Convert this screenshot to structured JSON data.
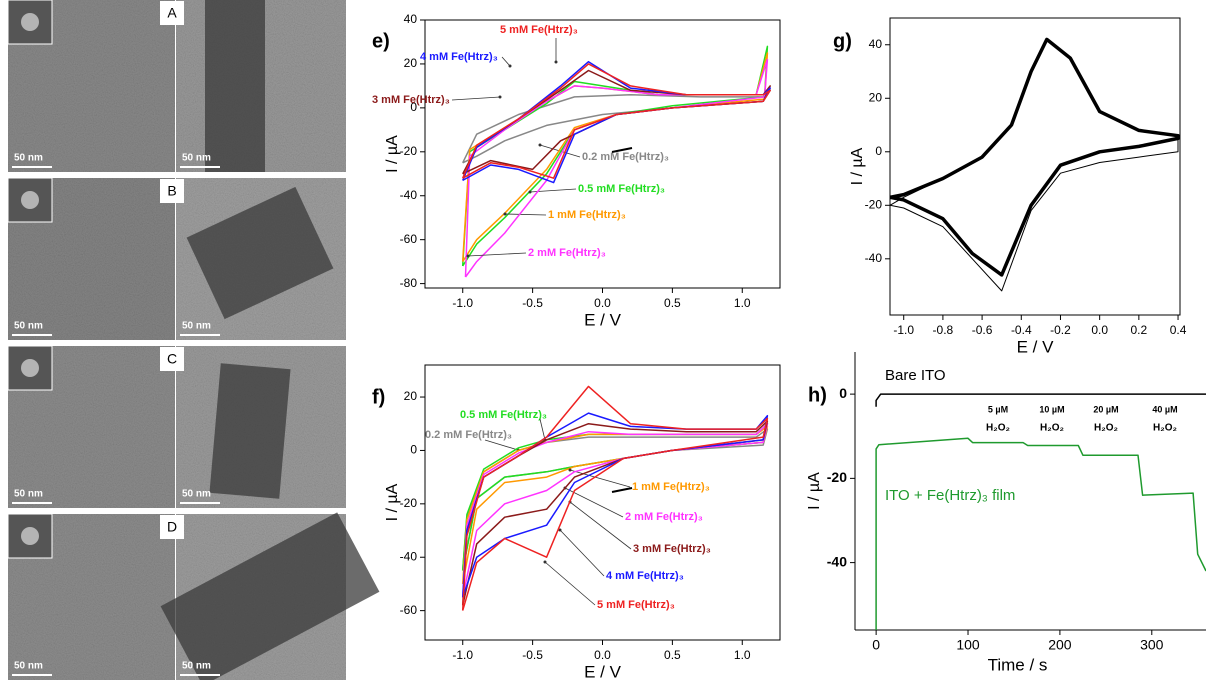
{
  "micrographs": {
    "labels": [
      "A",
      "B",
      "C",
      "D"
    ],
    "scale_bar": "50 nm"
  },
  "chart_data": [
    {
      "type": "line",
      "label": "e)",
      "xlabel": "E / V",
      "ylabel": "I / µA",
      "xlim": [
        -1.27,
        1.27
      ],
      "ylim": [
        -82,
        40
      ],
      "xticks": [
        {
          "value": -1,
          "label": "-1.0"
        },
        -0.5,
        {
          "value": 0,
          "label": "0.0"
        },
        0.5,
        {
          "value": 1,
          "label": "1.0"
        }
      ],
      "yticks": [
        -80,
        -60,
        -40,
        -20,
        0,
        20,
        40
      ],
      "series": [
        {
          "name": "0.2 mM Fe(Htrz)₃",
          "color": "#888888",
          "x": [
            -1,
            -0.9,
            -0.6,
            -0.2,
            0.2,
            0.7,
            1.15,
            1.2,
            1.15,
            0.5,
            0,
            -0.4,
            -0.7,
            -0.9,
            -1
          ],
          "values": [
            -25,
            -12,
            -3,
            5,
            6,
            5,
            5,
            8,
            3,
            0,
            -3,
            -8,
            -15,
            -22,
            -25
          ]
        },
        {
          "name": "0.5 mM Fe(Htrz)₃",
          "color": "#22dd22",
          "x": [
            -1,
            -0.95,
            -0.7,
            -0.4,
            -0.2,
            0,
            0.4,
            1.1,
            1.18,
            1.16,
            0.5,
            0.1,
            -0.2,
            -0.4,
            -0.7,
            -0.9,
            -1
          ],
          "values": [
            -72,
            -20,
            -10,
            2,
            12,
            10,
            6,
            6,
            28,
            5,
            1,
            -3,
            -10,
            -30,
            -50,
            -62,
            -72
          ]
        },
        {
          "name": "1 mM Fe(Htrz)₃",
          "color": "#ff9900",
          "x": [
            -1,
            -0.95,
            -0.7,
            -0.4,
            -0.2,
            0,
            0.4,
            1.1,
            1.18,
            1.16,
            0.5,
            0.1,
            -0.2,
            -0.4,
            -0.7,
            -0.9,
            -1
          ],
          "values": [
            -70,
            -19,
            -9,
            3,
            10,
            9,
            6,
            6,
            25,
            4,
            0,
            -3,
            -9,
            -28,
            -48,
            -60,
            -70
          ]
        },
        {
          "name": "2 mM Fe(Htrz)₃",
          "color": "#ff33ff",
          "x": [
            -0.98,
            -0.95,
            -0.7,
            -0.4,
            -0.2,
            0,
            0.4,
            1.1,
            1.18,
            1.16,
            0.5,
            0.1,
            -0.2,
            -0.4,
            -0.7,
            -0.9,
            -0.98
          ],
          "values": [
            -77,
            -22,
            -10,
            3,
            10,
            9,
            6,
            6,
            22,
            5,
            0,
            -3,
            -10,
            -33,
            -57,
            -70,
            -77
          ]
        },
        {
          "name": "3 mM Fe(Htrz)₃",
          "color": "#8b1a1a",
          "x": [
            -1,
            -0.9,
            -0.6,
            -0.3,
            -0.1,
            0.2,
            0.6,
            1.15,
            1.2,
            1.15,
            0.5,
            0.1,
            -0.3,
            -0.5,
            -0.8,
            -1
          ],
          "values": [
            -30,
            -18,
            -5,
            8,
            17,
            8,
            6,
            6,
            10,
            3,
            0,
            -3,
            -15,
            -28,
            -24,
            -30
          ]
        },
        {
          "name": "4 mM Fe(Htrz)₃",
          "color": "#1a1aff",
          "x": [
            -1,
            -0.9,
            -0.6,
            -0.3,
            -0.1,
            0.2,
            0.6,
            1.15,
            1.2,
            1.15,
            0.5,
            0.1,
            -0.2,
            -0.35,
            -0.6,
            -0.8,
            -1
          ],
          "values": [
            -33,
            -18,
            -5,
            10,
            21,
            9,
            6,
            6,
            9,
            3,
            0,
            -3,
            -12,
            -34,
            -28,
            -26,
            -33
          ]
        },
        {
          "name": "5 mM Fe(Htrz)₃",
          "color": "#ee2222",
          "x": [
            -1,
            -0.9,
            -0.6,
            -0.3,
            -0.1,
            0.2,
            0.6,
            1.15,
            1.2,
            1.15,
            0.5,
            0.1,
            -0.2,
            -0.35,
            -0.6,
            -0.8,
            -1
          ],
          "values": [
            -32,
            -17,
            -5,
            9,
            20,
            10,
            6,
            6,
            8,
            3,
            0,
            -3,
            -10,
            -32,
            -27,
            -25,
            -32
          ]
        }
      ]
    },
    {
      "type": "line",
      "label": "f)",
      "xlabel": "E / V",
      "ylabel": "I / µA",
      "xlim": [
        -1.27,
        1.27
      ],
      "ylim": [
        -71,
        32
      ],
      "xticks": [
        {
          "value": -1,
          "label": "-1.0"
        },
        -0.5,
        {
          "value": 0,
          "label": "0.0"
        },
        0.5,
        {
          "value": 1,
          "label": "1.0"
        }
      ],
      "yticks": [
        -60,
        -40,
        -20,
        0,
        20
      ],
      "series": [
        {
          "name": "0.2 mM Fe(Htrz)₃",
          "color": "#888888",
          "x": [
            -1,
            -0.97,
            -0.85,
            -0.6,
            -0.4,
            -0.1,
            0.2,
            0.6,
            1.1,
            1.18,
            1.15,
            0.5,
            0.15,
            -0.2,
            -0.4,
            -0.7,
            -0.9,
            -1
          ],
          "values": [
            -45,
            -25,
            -8,
            0,
            3,
            5,
            5,
            5,
            5,
            8,
            2,
            0,
            -3,
            -6,
            -8,
            -10,
            -18,
            -45
          ]
        },
        {
          "name": "0.5 mM Fe(Htrz)₃",
          "color": "#22dd22",
          "x": [
            -1,
            -0.97,
            -0.85,
            -0.6,
            -0.4,
            -0.1,
            0.2,
            0.6,
            1.1,
            1.18,
            1.15,
            0.5,
            0.15,
            -0.2,
            -0.4,
            -0.7,
            -0.9,
            -1
          ],
          "values": [
            -45,
            -24,
            -7,
            1,
            4,
            6,
            6,
            6,
            6,
            10,
            3,
            0,
            -3,
            -6,
            -8,
            -10,
            -18,
            -45
          ]
        },
        {
          "name": "1 mM Fe(Htrz)₃",
          "color": "#ff9900",
          "x": [
            -1,
            -0.97,
            -0.85,
            -0.6,
            -0.4,
            -0.1,
            0.2,
            0.6,
            1.1,
            1.18,
            1.15,
            0.5,
            0.15,
            -0.2,
            -0.4,
            -0.7,
            -0.9,
            -1
          ],
          "values": [
            -50,
            -26,
            -8,
            0,
            3,
            6,
            6,
            6,
            6,
            9,
            3,
            0,
            -3,
            -6,
            -10,
            -12,
            -22,
            -50
          ]
        },
        {
          "name": "2 mM Fe(Htrz)₃",
          "color": "#ff33ff",
          "x": [
            -1,
            -0.97,
            -0.85,
            -0.6,
            -0.4,
            -0.1,
            0.2,
            0.6,
            1.1,
            1.18,
            1.15,
            0.5,
            0.15,
            -0.2,
            -0.4,
            -0.7,
            -0.9,
            -1
          ],
          "values": [
            -55,
            -28,
            -9,
            -1,
            3,
            7,
            6,
            6,
            6,
            10,
            3,
            0,
            -3,
            -8,
            -15,
            -20,
            -30,
            -55
          ]
        },
        {
          "name": "3 mM Fe(Htrz)₃",
          "color": "#8b1a1a",
          "x": [
            -1,
            -0.97,
            -0.85,
            -0.6,
            -0.4,
            -0.1,
            0.2,
            0.6,
            1.1,
            1.18,
            1.15,
            0.5,
            0.15,
            -0.2,
            -0.4,
            -0.7,
            -0.9,
            -1
          ],
          "values": [
            -58,
            -30,
            -10,
            -2,
            4,
            10,
            8,
            7,
            7,
            11,
            4,
            0,
            -3,
            -10,
            -22,
            -25,
            -35,
            -58
          ]
        },
        {
          "name": "4 mM Fe(Htrz)₃",
          "color": "#1a1aff",
          "x": [
            -1,
            -0.97,
            -0.85,
            -0.6,
            -0.4,
            -0.1,
            0.2,
            0.6,
            1.1,
            1.18,
            1.15,
            0.5,
            0.15,
            -0.2,
            -0.4,
            -0.7,
            -0.9,
            -1
          ],
          "values": [
            -55,
            -30,
            -10,
            -2,
            5,
            14,
            9,
            8,
            8,
            13,
            4,
            0,
            -3,
            -12,
            -28,
            -33,
            -40,
            -55
          ]
        },
        {
          "name": "5 mM Fe(Htrz)₃",
          "color": "#ee2222",
          "x": [
            -1,
            -0.97,
            -0.85,
            -0.6,
            -0.4,
            -0.1,
            0.2,
            0.6,
            1.1,
            1.18,
            1.15,
            0.5,
            0.15,
            -0.2,
            -0.4,
            -0.7,
            -0.9,
            -1
          ],
          "values": [
            -60,
            -32,
            -10,
            -2,
            5,
            24,
            10,
            8,
            8,
            12,
            5,
            0,
            -3,
            -15,
            -40,
            -33,
            -42,
            -60
          ]
        }
      ]
    },
    {
      "type": "line",
      "label": "g)",
      "xlabel": "E / V",
      "ylabel": "I / µA",
      "xlim": [
        -1.07,
        0.41
      ],
      "ylim": [
        -61,
        50
      ],
      "xticks": [
        {
          "value": -1,
          "label": "-1.0"
        },
        -0.8,
        -0.6,
        -0.4,
        -0.2,
        {
          "value": 0,
          "label": "0.0"
        },
        0.2,
        0.4
      ],
      "yticks": [
        -40,
        -20,
        0,
        20,
        40
      ],
      "series": [
        {
          "color": "#000000",
          "x": [
            -1.07,
            -1,
            -0.8,
            -0.6,
            -0.45,
            -0.35,
            -0.27,
            -0.15,
            0,
            0.2,
            0.4,
            0.4,
            0.2,
            0,
            -0.2,
            -0.35,
            -0.5,
            -0.65,
            -0.8,
            -1,
            -1.07
          ],
          "values": [
            -17,
            -16,
            -10,
            -2,
            10,
            30,
            42,
            35,
            15,
            8,
            6,
            5,
            2,
            0,
            -5,
            -20,
            -46,
            -38,
            -25,
            -18,
            -17
          ]
        },
        {
          "color": "#000000",
          "x": [
            -1.07,
            -1,
            -0.8,
            -0.6,
            -0.45,
            -0.35,
            -0.27,
            -0.15,
            0,
            0.2,
            0.4,
            0.4,
            0.2,
            0,
            -0.2,
            -0.35,
            -0.5,
            -0.65,
            -0.8,
            -1,
            -1.07
          ],
          "values": [
            -20,
            -17,
            -10,
            -2,
            10,
            30,
            42,
            35,
            15,
            8,
            6,
            0,
            -2,
            -4,
            -8,
            -22,
            -52,
            -40,
            -28,
            -21,
            -20
          ]
        }
      ]
    },
    {
      "type": "line",
      "label": "h)",
      "xlabel": "Time / s",
      "ylabel": "I / µA",
      "xlim": [
        -23,
        359
      ],
      "ylim": [
        -56,
        10
      ],
      "xticks": [
        0,
        100,
        200,
        300
      ],
      "yticks": [
        -40,
        -20,
        0
      ],
      "annotations": [
        "5 µM",
        "10 µM",
        "20 µM",
        "40 µM"
      ],
      "annotation_species": "H₂O₂",
      "series": [
        {
          "name": "Bare ITO",
          "color": "#000000",
          "x": [
            0,
            0,
            5,
            359
          ],
          "values": [
            -3,
            -1.5,
            0,
            0
          ]
        },
        {
          "name": "ITO + Fe(Htrz)₃ film",
          "color": "#1f9a2e",
          "x": [
            0,
            0,
            3,
            100,
            105,
            160,
            165,
            220,
            225,
            285,
            290,
            345,
            350,
            359
          ],
          "values": [
            -56,
            -13,
            -12,
            -10.5,
            -11.5,
            -11.5,
            -12.2,
            -12.2,
            -14.5,
            -14.5,
            -24,
            -23.5,
            -38,
            -42
          ]
        }
      ]
    }
  ]
}
